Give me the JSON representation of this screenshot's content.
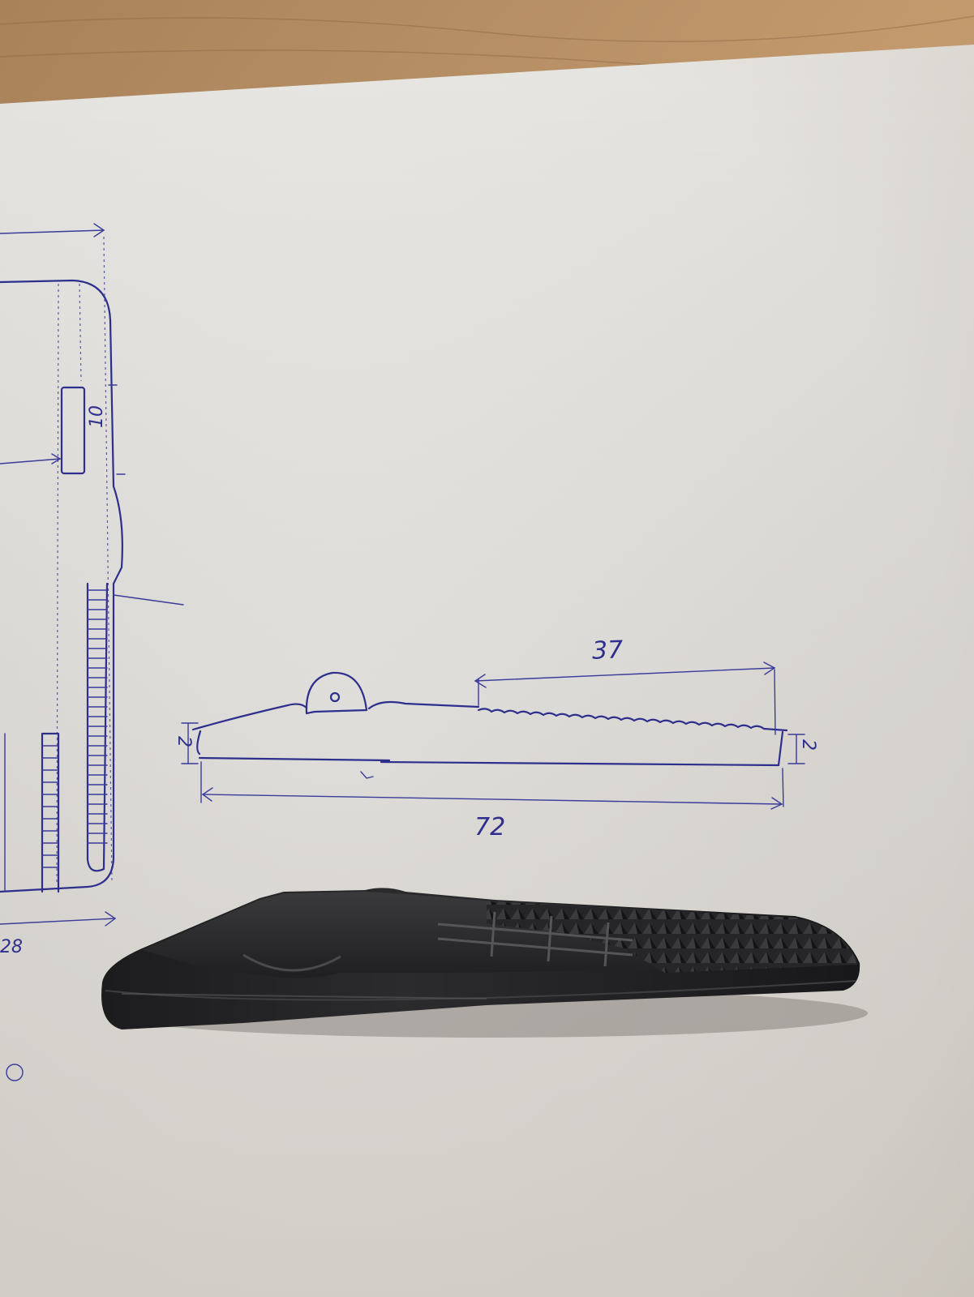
{
  "sketch": {
    "dimension_length_total": "72",
    "dimension_serrated_length": "37",
    "dimension_left_height": "2",
    "dimension_right_height": "2",
    "dimension_slot": "10",
    "partial_label_left": "28"
  },
  "colors": {
    "ink": "#2e2f8c",
    "paper": "#ecebe7",
    "table": "#b08a63",
    "plastic_part": "#2a2a2c"
  },
  "objects": [
    "paper-sheet",
    "pen-sketch",
    "black-plastic-wedge"
  ]
}
